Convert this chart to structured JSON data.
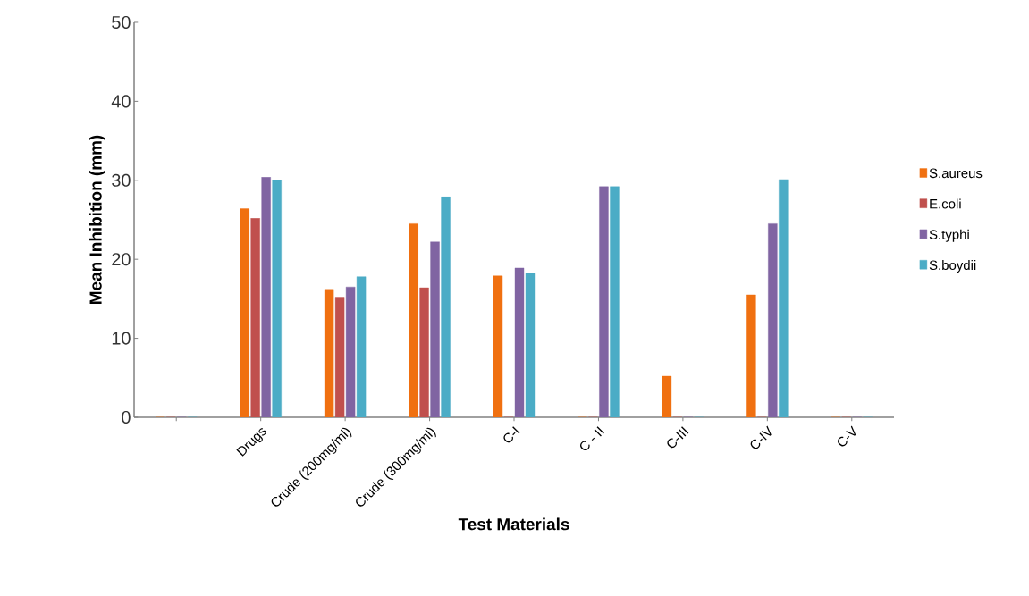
{
  "chart_data": {
    "type": "bar",
    "xlabel": "Test Materials",
    "ylabel": "Mean Inhibition  (mm)",
    "categories": [
      null,
      "Drugs",
      "Crude (200mg/ml)",
      "Crude (300mg/ml)",
      "C-I",
      "C - II",
      "C-III",
      "C-IV",
      "C-V"
    ],
    "series": [
      {
        "name": "S.aureus",
        "color": "#f07010",
        "values": [
          0,
          26.4,
          16.2,
          24.5,
          17.9,
          0,
          5.2,
          15.5,
          0
        ]
      },
      {
        "name": "E.coli",
        "color": "#c0504d",
        "values": [
          0,
          25.2,
          15.2,
          16.4,
          0,
          0,
          0,
          0,
          0
        ]
      },
      {
        "name": "S.typhi",
        "color": "#8064a2",
        "values": [
          0,
          30.4,
          16.5,
          22.2,
          18.9,
          29.2,
          0,
          24.5,
          0
        ]
      },
      {
        "name": "S.boydii",
        "color": "#4bacc6",
        "values": [
          0,
          30.0,
          17.8,
          27.9,
          18.2,
          29.2,
          0,
          30.1,
          0
        ]
      }
    ],
    "ylim": [
      0,
      50
    ],
    "yticks": [
      0,
      10,
      20,
      30,
      40,
      50
    ],
    "grid": false,
    "legend": "right"
  }
}
